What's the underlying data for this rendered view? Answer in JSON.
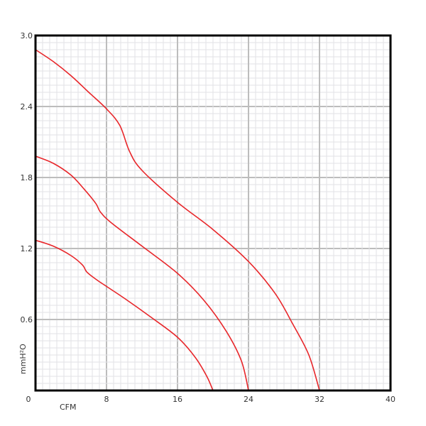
{
  "chart_data": {
    "type": "line",
    "title": "",
    "xlabel": "CFM",
    "ylabel": "mmH²O",
    "xlim": [
      0,
      40
    ],
    "ylim": [
      0,
      3.0
    ],
    "x_ticks": [
      "0",
      "8",
      "16",
      "24",
      "32",
      "40"
    ],
    "y_ticks": [
      "0.6",
      "1.2",
      "1.8",
      "2.4",
      "3.0"
    ],
    "grid": true,
    "line_color": "#e8262a",
    "series": [
      {
        "x": [
          0,
          2,
          4,
          6,
          8,
          9.5,
          10.6,
          12,
          16,
          20,
          24,
          27,
          29,
          30.8,
          32
        ],
        "y": [
          2.88,
          2.78,
          2.66,
          2.52,
          2.38,
          2.24,
          2.02,
          1.86,
          1.59,
          1.36,
          1.09,
          0.82,
          0.56,
          0.3,
          0
        ]
      },
      {
        "x": [
          0,
          2,
          4,
          5.5,
          6.8,
          7.3,
          8.5,
          12,
          16,
          19,
          21.5,
          23.2,
          24
        ],
        "y": [
          1.98,
          1.92,
          1.82,
          1.7,
          1.58,
          1.51,
          1.42,
          1.22,
          0.99,
          0.76,
          0.5,
          0.25,
          0
        ]
      },
      {
        "x": [
          0,
          2,
          4,
          5.3,
          5.8,
          7,
          10,
          13,
          16,
          18,
          19.3,
          20
        ],
        "y": [
          1.27,
          1.22,
          1.14,
          1.06,
          1.0,
          0.93,
          0.78,
          0.62,
          0.45,
          0.28,
          0.12,
          0
        ]
      }
    ]
  }
}
